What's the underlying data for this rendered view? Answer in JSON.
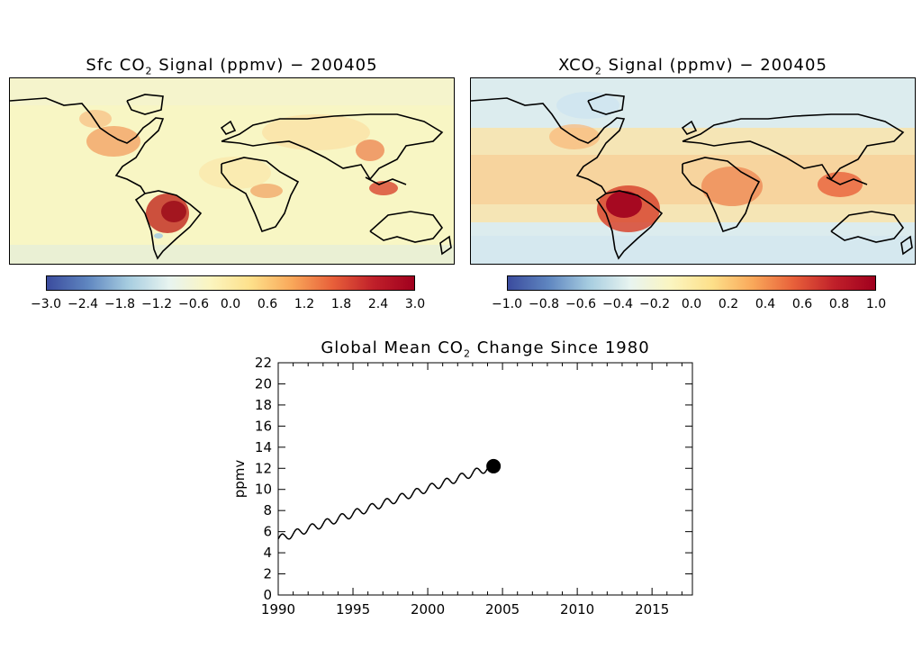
{
  "panels": {
    "sfc": {
      "title_prefix": "Sfc CO",
      "title_sub": "2",
      "title_suffix": " Signal (ppmv) − 200405",
      "colorbar_ticks": [
        "−3.0",
        "−2.4",
        "−1.8",
        "−1.2",
        "−0.6",
        "0.0",
        "0.6",
        "1.2",
        "1.8",
        "2.4",
        "3.0"
      ],
      "colorbar_range": [
        -3.0,
        3.0
      ]
    },
    "xco2": {
      "title_prefix": "XCO",
      "title_sub": "2",
      "title_suffix": " Signal (ppmv) − 200405",
      "colorbar_ticks": [
        "−1.0",
        "−0.8",
        "−0.6",
        "−0.4",
        "−0.2",
        "0.0",
        "0.2",
        "0.4",
        "0.6",
        "0.8",
        "1.0"
      ],
      "colorbar_range": [
        -1.0,
        1.0
      ]
    }
  },
  "colors": {
    "colormap": [
      "#3b4c9e",
      "#5f86c0",
      "#a7cde0",
      "#e8f4f0",
      "#fbf5c0",
      "#fde08a",
      "#f9a85a",
      "#e8603a",
      "#c0202a",
      "#a0001e"
    ],
    "background_fill_sfc": "#f8f6c4",
    "background_fill_xco2": "#dcecee",
    "high_signal": "#b01c22"
  },
  "chart_data": {
    "type": "line",
    "title_prefix": "Global Mean CO",
    "title_sub": "2",
    "title_suffix": " Change Since 1980",
    "xlabel": "",
    "ylabel": "ppmv",
    "xlim": [
      1990,
      2017.7
    ],
    "ylim": [
      0,
      22
    ],
    "xticks": [
      1990,
      1995,
      2000,
      2005,
      2010,
      2015
    ],
    "yticks": [
      0,
      2,
      4,
      6,
      8,
      10,
      12,
      14,
      16,
      18,
      20,
      22
    ],
    "series": [
      {
        "start": [
          1990.0,
          5.3
        ],
        "end": [
          2004.4,
          12.2
        ],
        "seasonal_amplitude": 0.35
      }
    ],
    "marker": {
      "x": 2004.4,
      "y": 12.2
    },
    "grid": false
  }
}
